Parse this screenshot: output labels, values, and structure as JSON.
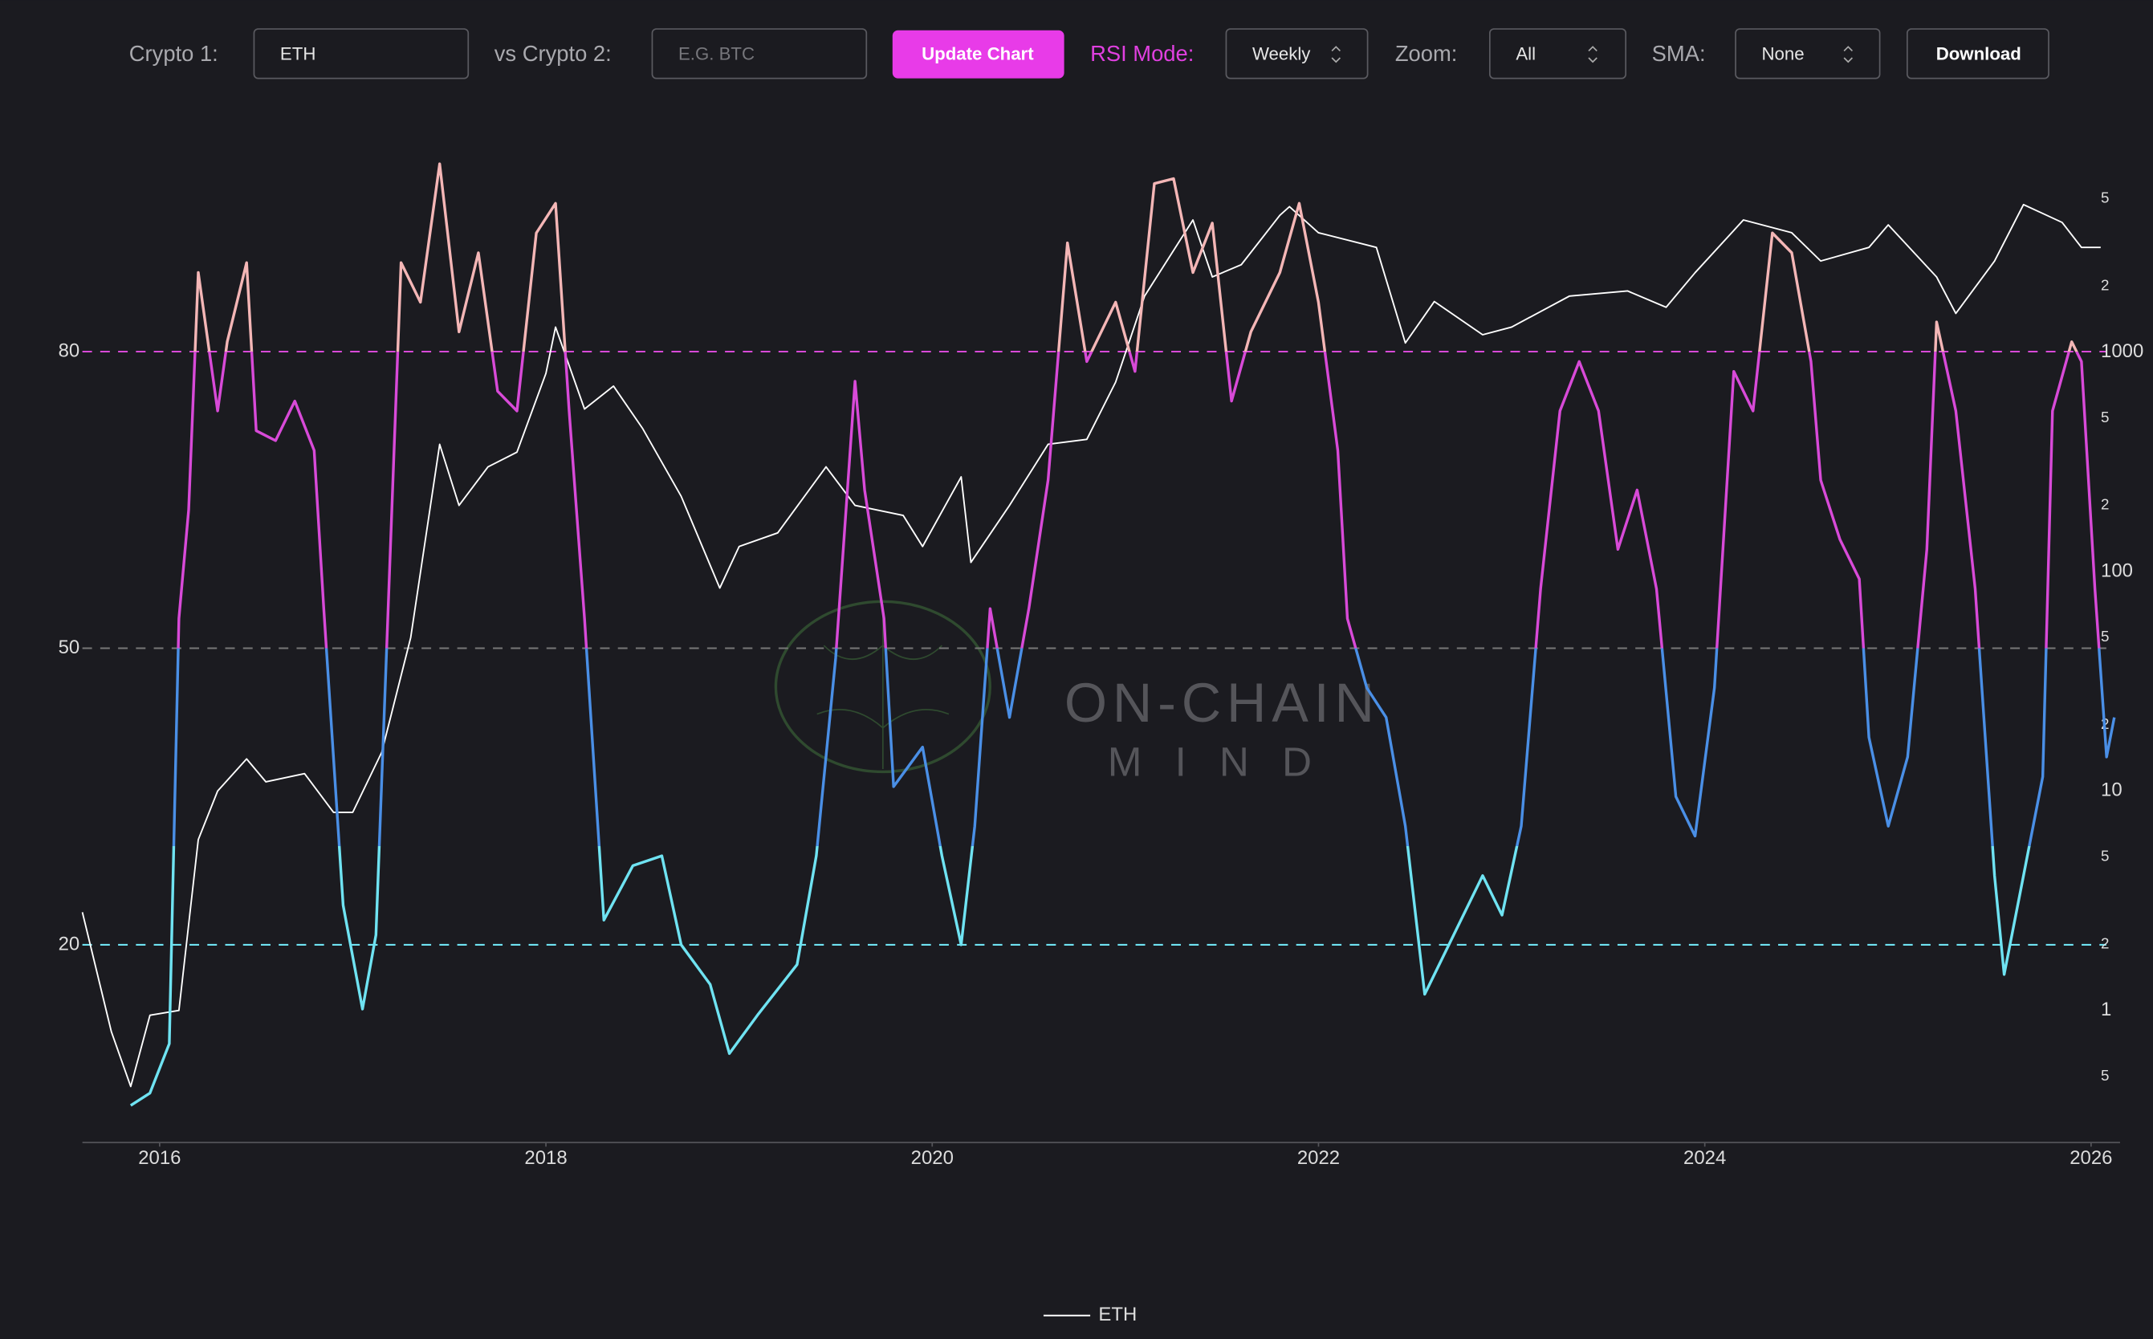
{
  "controls": {
    "crypto1_label": "Crypto 1:",
    "crypto1_value": "ETH",
    "crypto2_label": "vs Crypto 2:",
    "crypto2_placeholder": "E.G. BTC",
    "update_button": "Update Chart",
    "rsi_mode_label": "RSI Mode:",
    "rsi_mode_value": "Weekly",
    "zoom_label": "Zoom:",
    "zoom_value": "All",
    "sma_label": "SMA:",
    "sma_value": "None",
    "download_button": "Download"
  },
  "watermark": {
    "line1": "ON-CHAIN",
    "line2": "MIND"
  },
  "chart_data": {
    "type": "line",
    "xlim": [
      2015.6,
      2026.15
    ],
    "xticks": [
      2016,
      2018,
      2020,
      2022,
      2024,
      2026
    ],
    "ylim": [
      0,
      100
    ],
    "yticks": [
      20,
      50,
      80
    ],
    "ytick_colors": [
      "#6fe3f2",
      "#777777",
      "#d84ad8"
    ],
    "y2lim": [
      0.25,
      8000
    ],
    "y2scale": "log",
    "y2ticks": [
      {
        "value": 5000,
        "label": "5"
      },
      {
        "value": 2000,
        "label": "2"
      },
      1000,
      {
        "value": 500,
        "label": "5"
      },
      {
        "value": 200,
        "label": "2"
      },
      100,
      {
        "value": 50,
        "label": "5"
      },
      {
        "value": 20,
        "label": "2"
      },
      10,
      {
        "value": 5,
        "label": "5"
      },
      {
        "value": 2,
        "label": "2"
      },
      1,
      {
        "value": 0.5,
        "label": "5"
      }
    ],
    "rsi_color_bands": [
      {
        "min": 0,
        "color": "#6fe3f2"
      },
      {
        "min": 30,
        "color": "#4a8fe6"
      },
      {
        "min": 50,
        "color": "#d84ad8"
      },
      {
        "min": 80,
        "color": "#f4b6b6"
      }
    ],
    "series": [
      {
        "x": [
          2015.85,
          2015.95,
          2016.05,
          2016.1,
          2016.15,
          2016.2,
          2016.3,
          2016.35,
          2016.45,
          2016.5,
          2016.6,
          2016.7,
          2016.8,
          2016.85,
          2016.95,
          2017.05,
          2017.12,
          2017.25,
          2017.35,
          2017.45,
          2017.55,
          2017.65,
          2017.75,
          2017.85,
          2017.95,
          2018.05,
          2018.12,
          2018.2,
          2018.3,
          2018.45,
          2018.6,
          2018.7,
          2018.85,
          2018.95,
          2019.1,
          2019.3,
          2019.4,
          2019.5,
          2019.6,
          2019.65,
          2019.75,
          2019.8,
          2019.95,
          2020.05,
          2020.15,
          2020.22,
          2020.3,
          2020.4,
          2020.5,
          2020.6,
          2020.7,
          2020.8,
          2020.95,
          2021.05,
          2021.15,
          2021.25,
          2021.35,
          2021.45,
          2021.55,
          2021.65,
          2021.8,
          2021.9,
          2022.0,
          2022.1,
          2022.15,
          2022.25,
          2022.35,
          2022.45,
          2022.55,
          2022.7,
          2022.85,
          2022.95,
          2023.05,
          2023.15,
          2023.25,
          2023.35,
          2023.45,
          2023.55,
          2023.65,
          2023.75,
          2023.85,
          2023.95,
          2024.05,
          2024.15,
          2024.25,
          2024.35,
          2024.45,
          2024.55,
          2024.6,
          2024.7,
          2024.8,
          2024.85,
          2024.95,
          2025.05,
          2025.15,
          2025.2,
          2025.3,
          2025.4,
          2025.5,
          2025.55,
          2025.65,
          2025.75,
          2025.8,
          2025.9,
          2025.95,
          2026.02,
          2026.08,
          2026.12
        ],
        "values": [
          3.75,
          5,
          10,
          53,
          64,
          88,
          74,
          81,
          89,
          72,
          71,
          75,
          70,
          54,
          24,
          13.5,
          21,
          89,
          85,
          99,
          82,
          90,
          76,
          74,
          92,
          95,
          74,
          53,
          22.5,
          28,
          29,
          20,
          16,
          9,
          13,
          18,
          29,
          49,
          77,
          66,
          53,
          36,
          40,
          29,
          20,
          32,
          54,
          43,
          54,
          67,
          91,
          79,
          85,
          78,
          97,
          97.5,
          88,
          93,
          75,
          82,
          88,
          95,
          85,
          70,
          53,
          46,
          43,
          32,
          15,
          21,
          27,
          23,
          32,
          56,
          74,
          79,
          74,
          60,
          66,
          56,
          35,
          31,
          46,
          78,
          74,
          92,
          90,
          79,
          67,
          61,
          57,
          41,
          32,
          39,
          60,
          83,
          74,
          56,
          27,
          17,
          27,
          37,
          74,
          81,
          79,
          56,
          39,
          43
        ]
      },
      {
        "name": "ETH",
        "color": "#ffffff",
        "axis": "y2",
        "x": [
          2015.6,
          2015.75,
          2015.85,
          2015.95,
          2016.1,
          2016.2,
          2016.3,
          2016.45,
          2016.55,
          2016.75,
          2016.9,
          2017.0,
          2017.15,
          2017.3,
          2017.45,
          2017.55,
          2017.7,
          2017.85,
          2018.0,
          2018.05,
          2018.2,
          2018.35,
          2018.5,
          2018.7,
          2018.9,
          2019.0,
          2019.2,
          2019.45,
          2019.6,
          2019.85,
          2019.95,
          2020.15,
          2020.2,
          2020.4,
          2020.6,
          2020.8,
          2020.95,
          2021.1,
          2021.35,
          2021.45,
          2021.6,
          2021.8,
          2021.85,
          2022.0,
          2022.3,
          2022.45,
          2022.6,
          2022.85,
          2023.0,
          2023.3,
          2023.6,
          2023.8,
          2023.95,
          2024.2,
          2024.45,
          2024.6,
          2024.85,
          2024.95,
          2025.2,
          2025.3,
          2025.5,
          2025.65,
          2025.85,
          2025.95,
          2026.05
        ],
        "values": [
          2.8,
          0.8,
          0.45,
          0.95,
          1.0,
          6,
          10,
          14,
          11,
          12,
          8,
          8,
          15,
          50,
          380,
          200,
          300,
          350,
          800,
          1300,
          550,
          700,
          450,
          220,
          84,
          130,
          150,
          300,
          200,
          180,
          130,
          270,
          110,
          200,
          380,
          400,
          730,
          1800,
          4000,
          2200,
          2500,
          4200,
          4600,
          3500,
          3000,
          1100,
          1700,
          1200,
          1300,
          1800,
          1900,
          1600,
          2300,
          4000,
          3500,
          2600,
          3000,
          3800,
          2200,
          1500,
          2600,
          4700,
          3900,
          3000,
          3000
        ]
      }
    ]
  }
}
